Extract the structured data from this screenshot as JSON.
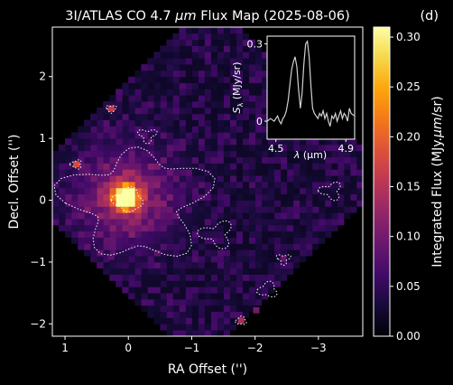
{
  "title_prefix": "3I/ATLAS CO 4.7 ",
  "title_unit": "μm",
  "title_suffix": " Flux Map (2025-08-06)",
  "panel_label": "(d)",
  "chart_data": [
    {
      "type": "heatmap",
      "xlabel": "RA Offset ('')",
      "ylabel": "Decl. Offset ('')",
      "xlim": [
        1.2,
        -3.7
      ],
      "ylim": [
        -2.2,
        2.8
      ],
      "xticks": [
        1,
        0,
        -1,
        -2,
        -3
      ],
      "xtick_labels": [
        "1",
        "0",
        "−1",
        "−2",
        "−3"
      ],
      "yticks": [
        -2,
        -1,
        0,
        1,
        2
      ],
      "ytick_labels": [
        "−2",
        "−1",
        "0",
        "1",
        "2"
      ],
      "colormap": "inferno-like",
      "peak": {
        "ra": 0.0,
        "dec": 0.0,
        "value": 0.31
      },
      "colorbar": {
        "label_prefix": "Integrated Flux (MJy.",
        "label_unit": "μm",
        "label_suffix": "/sr)",
        "min": 0.0,
        "max": 0.31,
        "ticks": [
          0.0,
          0.05,
          0.1,
          0.15,
          0.2,
          0.25,
          0.3
        ],
        "tick_labels": [
          "0.00",
          "0.05",
          "0.10",
          "0.15",
          "0.20",
          "0.25",
          "0.30"
        ]
      },
      "contour_color": "#ffffff",
      "contour_style": "dotted"
    },
    {
      "type": "line",
      "name": "inset spectrum",
      "xlabel_sym": "λ",
      "xlabel_unit": " (μm)",
      "ylabel_sym": "S",
      "ylabel_sub": "λ",
      "ylabel_unit": " (MJy/sr)",
      "xlim": [
        4.45,
        4.95
      ],
      "ylim": [
        -0.07,
        0.33
      ],
      "xticks": [
        4.5,
        4.9
      ],
      "xtick_labels": [
        "4.5",
        "4.9"
      ],
      "yticks": [
        0,
        0.3
      ],
      "ytick_labels": [
        "0",
        "0.3"
      ],
      "x": [
        4.45,
        4.47,
        4.49,
        4.51,
        4.52,
        4.53,
        4.54,
        4.55,
        4.56,
        4.57,
        4.58,
        4.59,
        4.6,
        4.61,
        4.62,
        4.63,
        4.64,
        4.65,
        4.66,
        4.67,
        4.68,
        4.69,
        4.7,
        4.71,
        4.72,
        4.73,
        4.74,
        4.75,
        4.76,
        4.77,
        4.78,
        4.79,
        4.8,
        4.81,
        4.82,
        4.83,
        4.84,
        4.85,
        4.86,
        4.87,
        4.88,
        4.89,
        4.9,
        4.91,
        4.92,
        4.93,
        4.95
      ],
      "y": [
        0.0,
        0.01,
        0.0,
        0.02,
        0.0,
        -0.01,
        0.01,
        0.02,
        0.04,
        0.08,
        0.14,
        0.2,
        0.23,
        0.25,
        0.21,
        0.12,
        0.05,
        0.11,
        0.22,
        0.3,
        0.31,
        0.25,
        0.14,
        0.05,
        0.03,
        0.02,
        0.01,
        0.03,
        0.02,
        0.04,
        0.01,
        0.03,
        0.0,
        -0.02,
        0.02,
        0.01,
        0.03,
        0.0,
        0.02,
        0.04,
        0.01,
        0.03,
        0.02,
        0.0,
        0.05,
        0.03,
        0.02
      ],
      "line_color": "#d0d0d0"
    }
  ]
}
